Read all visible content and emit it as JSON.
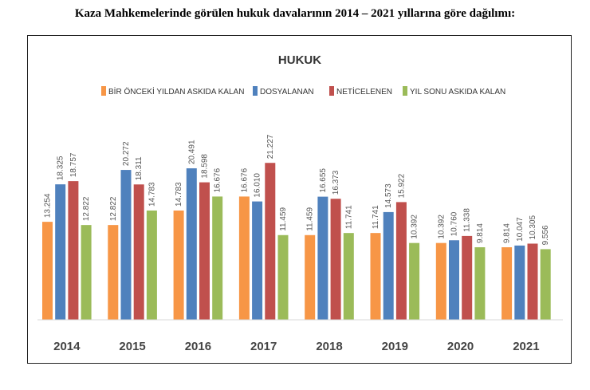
{
  "heading": "Kaza Mahkemelerinde görülen hukuk davalarının 2014 – 2021 yıllarına göre dağılımı:",
  "chart_data": {
    "type": "bar",
    "title": "HUKUK",
    "categories": [
      "2014",
      "2015",
      "2016",
      "2017",
      "2018",
      "2019",
      "2020",
      "2021"
    ],
    "ylim": [
      0,
      25
    ],
    "grid": false,
    "legend_position": "top",
    "series": [
      {
        "name": "BİR ÖNCEKİ YILDAN ASKIDA KALAN",
        "color": "#f79646",
        "values": [
          13.254,
          12.822,
          14.783,
          16.676,
          11.459,
          11.741,
          10.392,
          9.814
        ],
        "labels": [
          "13.254",
          "12.822",
          "14.783",
          "16.676",
          "11.459",
          "11.741",
          "10.392",
          "9.814"
        ]
      },
      {
        "name": "DOSYALANAN",
        "color": "#4f81bd",
        "values": [
          18.325,
          20.272,
          20.491,
          16.01,
          16.655,
          14.573,
          10.76,
          10.047
        ],
        "labels": [
          "18.325",
          "20.272",
          "20.491",
          "16.010",
          "16.655",
          "14.573",
          "10.760",
          "10.047"
        ]
      },
      {
        "name": "NETİCELENEN",
        "color": "#c0504d",
        "values": [
          18.757,
          18.311,
          18.598,
          21.227,
          16.373,
          15.922,
          11.338,
          10.305
        ],
        "labels": [
          "18.757",
          "18.311",
          "18.598",
          "21.227",
          "16.373",
          "15.922",
          "11.338",
          "10.305"
        ]
      },
      {
        "name": "YIL SONU ASKIDA KALAN",
        "color": "#9bbb59",
        "values": [
          12.822,
          14.783,
          16.676,
          11.459,
          11.741,
          10.392,
          9.814,
          9.556
        ],
        "labels": [
          "12.822",
          "14.783",
          "16.676",
          "11.459",
          "11.741",
          "10.392",
          "9.814",
          "9.556"
        ]
      }
    ]
  }
}
